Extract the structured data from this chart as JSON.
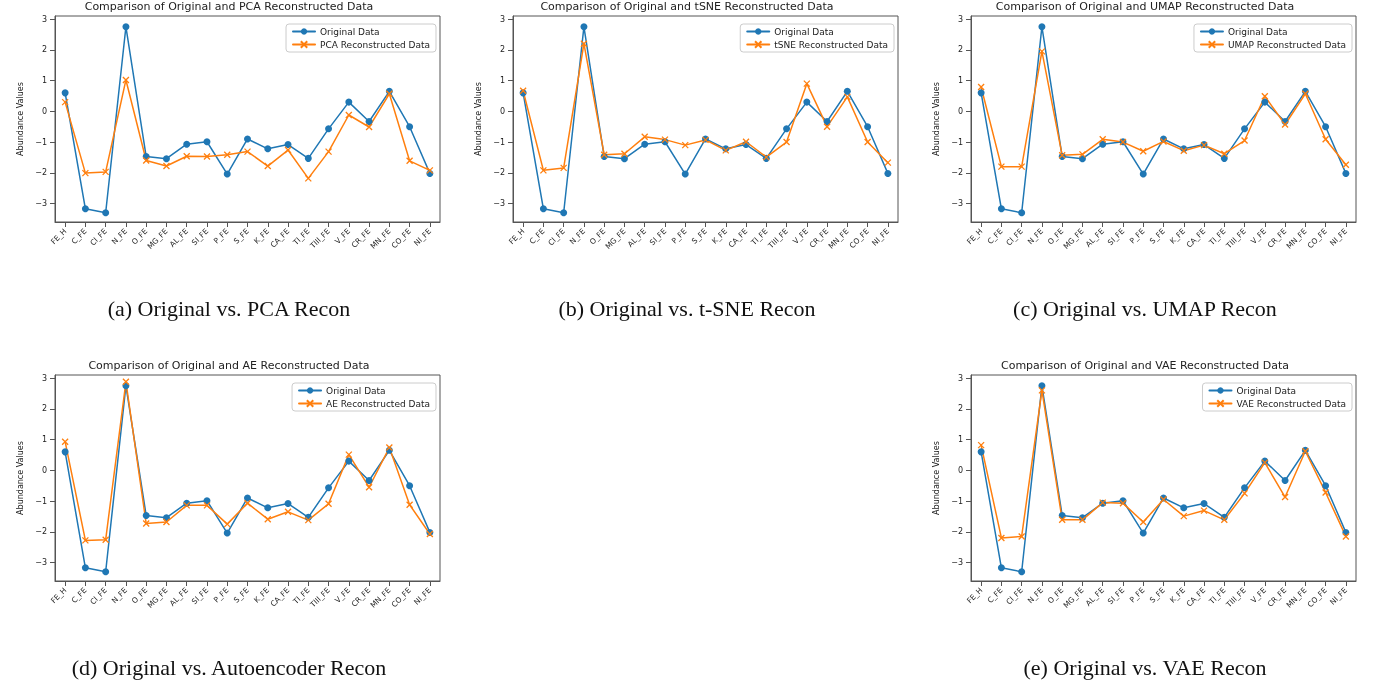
{
  "chart_data": [
    {
      "type": "line",
      "title": "Comparison of Original and PCA Reconstructed Data",
      "ylabel": "Abundance Values",
      "annotations": [
        "(a) Original vs. PCA Recon"
      ],
      "categories": [
        "FE_H",
        "C_FE",
        "CI_FE",
        "N_FE",
        "O_FE",
        "MG_FE",
        "AL_FE",
        "SI_FE",
        "P_FE",
        "S_FE",
        "K_FE",
        "CA_FE",
        "TI_FE",
        "TIII_FE",
        "V_FE",
        "CR_FE",
        "MN_FE",
        "CO_FE",
        "NI_FE"
      ],
      "ylim": [
        -3.6,
        3.1
      ],
      "yticks": [
        -3,
        -2,
        -1,
        0,
        1,
        2,
        3
      ],
      "grid": false,
      "legend": "top right",
      "line_style": "solid",
      "series": [
        {
          "name": "Original Data",
          "color": "#1f77b4",
          "marker": "circle",
          "values": [
            0.6,
            -3.17,
            -3.3,
            2.75,
            -1.47,
            -1.54,
            -1.07,
            -0.99,
            -2.04,
            -0.9,
            -1.22,
            -1.08,
            -1.53,
            -0.57,
            0.3,
            -0.33,
            0.65,
            -0.5,
            -2.02
          ]
        },
        {
          "name": "PCA Reconstructed Data",
          "color": "#ff7f0e",
          "marker": "cross",
          "values": [
            0.3,
            -2.01,
            -1.97,
            1.02,
            -1.6,
            -1.78,
            -1.46,
            -1.47,
            -1.41,
            -1.31,
            -1.78,
            -1.26,
            -2.18,
            -1.31,
            -0.12,
            -0.51,
            0.57,
            -1.61,
            -1.92
          ]
        }
      ]
    },
    {
      "type": "line",
      "title": "Comparison of Original and tSNE Reconstructed Data",
      "ylabel": "Abundance Values",
      "annotations": [
        "(b) Original vs. t-SNE Recon"
      ],
      "categories": [
        "FE_H",
        "C_FE",
        "CI_FE",
        "N_FE",
        "O_FE",
        "MG_FE",
        "AL_FE",
        "SI_FE",
        "P_FE",
        "S_FE",
        "K_FE",
        "CA_FE",
        "TI_FE",
        "TIII_FE",
        "V_FE",
        "CR_FE",
        "MN_FE",
        "CO_FE",
        "NI_FE"
      ],
      "ylim": [
        -3.6,
        3.1
      ],
      "yticks": [
        -3,
        -2,
        -1,
        0,
        1,
        2,
        3
      ],
      "grid": false,
      "legend": "top right",
      "line_style": "solid",
      "series": [
        {
          "name": "Original Data",
          "color": "#1f77b4",
          "marker": "circle",
          "values": [
            0.6,
            -3.17,
            -3.3,
            2.75,
            -1.47,
            -1.54,
            -1.07,
            -0.99,
            -2.04,
            -0.9,
            -1.22,
            -1.08,
            -1.53,
            -0.57,
            0.3,
            -0.33,
            0.65,
            -0.5,
            -2.02
          ]
        },
        {
          "name": "tSNE Reconstructed Data",
          "color": "#ff7f0e",
          "marker": "cross",
          "values": [
            0.67,
            -1.92,
            -1.84,
            2.2,
            -1.41,
            -1.38,
            -0.83,
            -0.92,
            -1.1,
            -0.93,
            -1.27,
            -0.99,
            -1.49,
            -1.0,
            0.9,
            -0.5,
            0.47,
            -1.0,
            -1.67
          ]
        }
      ]
    },
    {
      "type": "line",
      "title": "Comparison of Original and UMAP Reconstructed Data",
      "ylabel": "Abundance Values",
      "annotations": [
        "(c) Original vs. UMAP Recon"
      ],
      "categories": [
        "FE_H",
        "C_FE",
        "CI_FE",
        "N_FE",
        "O_FE",
        "MG_FE",
        "AL_FE",
        "SI_FE",
        "P_FE",
        "S_FE",
        "K_FE",
        "CA_FE",
        "TI_FE",
        "TIII_FE",
        "V_FE",
        "CR_FE",
        "MN_FE",
        "CO_FE",
        "NI_FE"
      ],
      "ylim": [
        -3.6,
        3.1
      ],
      "yticks": [
        -3,
        -2,
        -1,
        0,
        1,
        2,
        3
      ],
      "grid": false,
      "legend": "top right",
      "line_style": "solid",
      "series": [
        {
          "name": "Original Data",
          "color": "#1f77b4",
          "marker": "circle",
          "values": [
            0.6,
            -3.17,
            -3.3,
            2.75,
            -1.47,
            -1.54,
            -1.07,
            -0.99,
            -2.04,
            -0.9,
            -1.22,
            -1.08,
            -1.53,
            -0.57,
            0.3,
            -0.33,
            0.65,
            -0.5,
            -2.02
          ]
        },
        {
          "name": "UMAP Reconstructed Data",
          "color": "#ff7f0e",
          "marker": "cross",
          "values": [
            0.79,
            -1.8,
            -1.8,
            1.95,
            -1.43,
            -1.4,
            -0.91,
            -1.0,
            -1.3,
            -0.98,
            -1.28,
            -1.1,
            -1.38,
            -0.95,
            0.49,
            -0.43,
            0.57,
            -0.91,
            -1.74
          ]
        }
      ]
    },
    {
      "type": "line",
      "title": "Comparison of Original and AE Reconstructed Data",
      "ylabel": "Abundance Values",
      "annotations": [
        "(d) Original vs. Autoencoder Recon"
      ],
      "categories": [
        "FE_H",
        "C_FE",
        "CI_FE",
        "N_FE",
        "O_FE",
        "MG_FE",
        "AL_FE",
        "SI_FE",
        "P_FE",
        "S_FE",
        "K_FE",
        "CA_FE",
        "TI_FE",
        "TIII_FE",
        "V_FE",
        "CR_FE",
        "MN_FE",
        "CO_FE",
        "NI_FE"
      ],
      "ylim": [
        -3.6,
        3.1
      ],
      "yticks": [
        -3,
        -2,
        -1,
        0,
        1,
        2,
        3
      ],
      "grid": false,
      "legend": "top right",
      "line_style": "solid",
      "series": [
        {
          "name": "Original Data",
          "color": "#1f77b4",
          "marker": "circle",
          "values": [
            0.6,
            -3.17,
            -3.3,
            2.75,
            -1.47,
            -1.54,
            -1.07,
            -0.99,
            -2.04,
            -0.9,
            -1.22,
            -1.08,
            -1.53,
            -0.57,
            0.3,
            -0.33,
            0.65,
            -0.5,
            -2.02
          ]
        },
        {
          "name": "AE Reconstructed Data",
          "color": "#ff7f0e",
          "marker": "cross",
          "values": [
            0.93,
            -2.28,
            -2.26,
            2.88,
            -1.73,
            -1.68,
            -1.14,
            -1.14,
            -1.75,
            -1.07,
            -1.59,
            -1.35,
            -1.62,
            -1.09,
            0.51,
            -0.55,
            0.74,
            -1.12,
            -2.07
          ]
        }
      ]
    },
    {
      "type": "line",
      "title": "Comparison of Original and VAE Reconstructed Data",
      "ylabel": "Abundance Values",
      "annotations": [
        "(e) Original vs. VAE Recon"
      ],
      "categories": [
        "FE_H",
        "C_FE",
        "CI_FE",
        "N_FE",
        "O_FE",
        "MG_FE",
        "AL_FE",
        "SI_FE",
        "P_FE",
        "S_FE",
        "K_FE",
        "CA_FE",
        "TI_FE",
        "TIII_FE",
        "V_FE",
        "CR_FE",
        "MN_FE",
        "CO_FE",
        "NI_FE"
      ],
      "ylim": [
        -3.6,
        3.1
      ],
      "yticks": [
        -3,
        -2,
        -1,
        0,
        1,
        2,
        3
      ],
      "grid": false,
      "legend": "top right",
      "line_style": "solid",
      "series": [
        {
          "name": "Original Data",
          "color": "#1f77b4",
          "marker": "circle",
          "values": [
            0.6,
            -3.17,
            -3.3,
            2.75,
            -1.47,
            -1.54,
            -1.07,
            -0.99,
            -2.04,
            -0.9,
            -1.22,
            -1.08,
            -1.53,
            -0.57,
            0.3,
            -0.33,
            0.65,
            -0.5,
            -2.02
          ]
        },
        {
          "name": "VAE Reconstructed Data",
          "color": "#ff7f0e",
          "marker": "cross",
          "values": [
            0.82,
            -2.2,
            -2.15,
            2.6,
            -1.61,
            -1.61,
            -1.05,
            -1.07,
            -1.68,
            -0.95,
            -1.49,
            -1.31,
            -1.61,
            -0.75,
            0.25,
            -0.87,
            0.62,
            -0.72,
            -2.15
          ]
        }
      ]
    }
  ]
}
